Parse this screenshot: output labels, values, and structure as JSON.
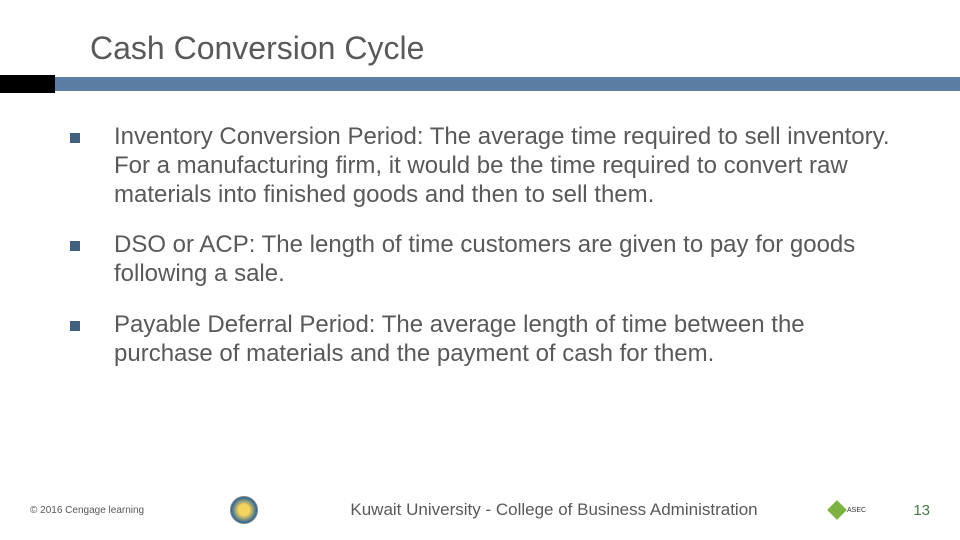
{
  "title": "Cash Conversion Cycle",
  "colors": {
    "text": "#595959",
    "bullet": "#406080",
    "bar_dark": "#000000",
    "bar_blue": "#5b7ca3",
    "page_num": "#4a7a4a"
  },
  "bullets": [
    "Inventory Conversion Period: The average time required to sell inventory. For a manufacturing firm, it would be the time required to convert raw materials into finished goods and then to sell them.",
    "DSO or ACP:  The length of time customers are given to pay for goods following a sale.",
    "Payable Deferral Period:  The average length of time between the purchase of materials and the payment of cash for them."
  ],
  "footer": {
    "copyright": "© 2016 Cengage learning",
    "center": "Kuwait University - College of Business Administration",
    "page": "13"
  }
}
